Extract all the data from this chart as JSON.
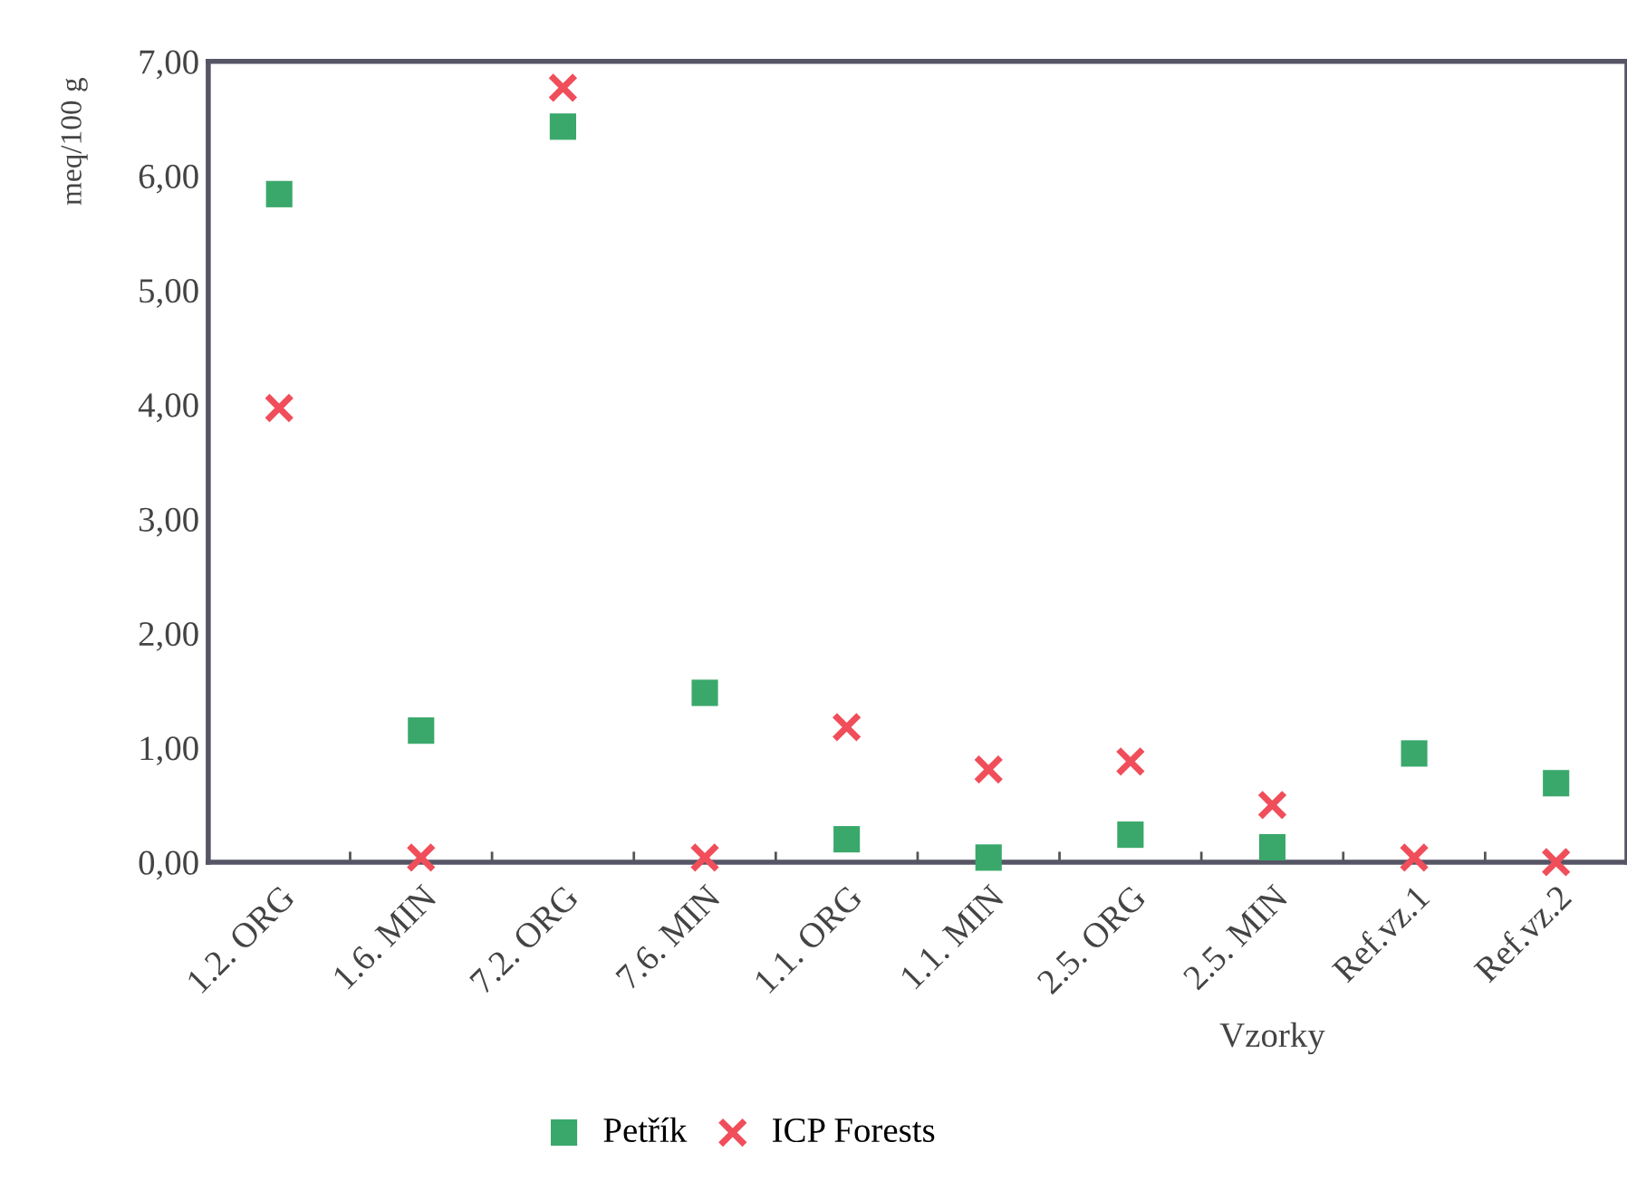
{
  "chart_data": {
    "type": "scatter",
    "ylabel": "meq/100 g",
    "xlabel": "Vzorky",
    "categories": [
      "1.2. ORG",
      "1.6. MIN",
      "7.2. ORG",
      "7.6. MIN",
      "1.1. ORG",
      "1.1. MIN",
      "2.5. ORG",
      "2.5. MIN",
      "Ref.vz.1",
      "Ref.vz.2"
    ],
    "series": [
      {
        "name": "Petřík",
        "color": "#3aa86b",
        "marker": "square",
        "values": [
          5.84,
          1.15,
          6.43,
          1.48,
          0.2,
          0.04,
          0.24,
          0.13,
          0.95,
          0.69
        ]
      },
      {
        "name": "ICP Forests",
        "color": "#f04e5a",
        "marker": "cross",
        "values": [
          3.97,
          0.04,
          6.77,
          0.04,
          1.18,
          0.81,
          0.88,
          0.5,
          0.04,
          0.0
        ]
      }
    ],
    "ylim": [
      0,
      7
    ],
    "yticks": [
      {
        "value": 0,
        "label": "0,00"
      },
      {
        "value": 1,
        "label": "1,00"
      },
      {
        "value": 2,
        "label": "2,00"
      },
      {
        "value": 3,
        "label": "3,00"
      },
      {
        "value": 4,
        "label": "4,00"
      },
      {
        "value": 5,
        "label": "5,00"
      },
      {
        "value": 6,
        "label": "6,00"
      },
      {
        "value": 7,
        "label": "7,00"
      }
    ],
    "grid": false,
    "legend": "bottom"
  }
}
